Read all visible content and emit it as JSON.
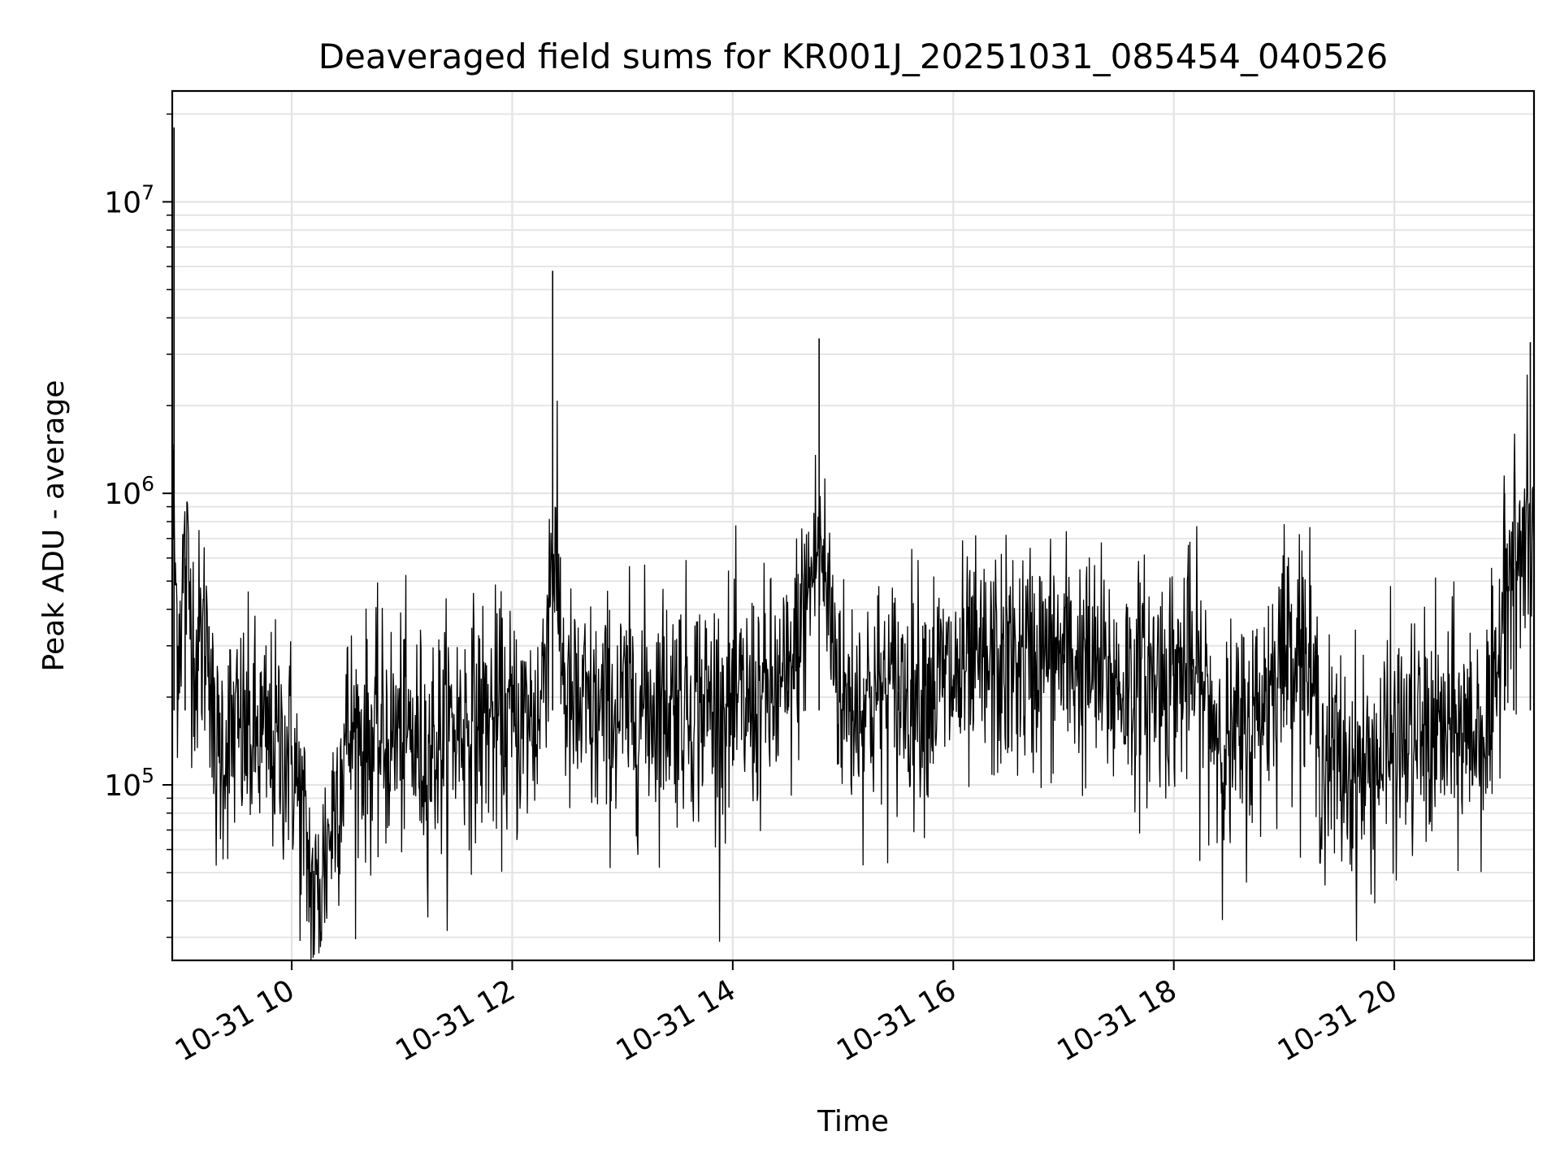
{
  "chart_data": {
    "type": "line",
    "title": "Deaveraged field sums for KR001J_20251031_085454_040526",
    "xlabel": "Time",
    "ylabel": "Peak ADU - average",
    "x_range": [
      "2025-10-31T08:55:00",
      "2025-10-31T21:16:00"
    ],
    "y_scale": "log",
    "ylim": [
      25000,
      24000000
    ],
    "grid": true,
    "line_color": "#000000",
    "x_ticks": [
      {
        "value": "2025-10-31T10:00:00",
        "label": "10-31 10"
      },
      {
        "value": "2025-10-31T12:00:00",
        "label": "10-31 12"
      },
      {
        "value": "2025-10-31T14:00:00",
        "label": "10-31 14"
      },
      {
        "value": "2025-10-31T16:00:00",
        "label": "10-31 16"
      },
      {
        "value": "2025-10-31T18:00:00",
        "label": "10-31 18"
      },
      {
        "value": "2025-10-31T20:00:00",
        "label": "10-31 20"
      }
    ],
    "y_ticks": [
      {
        "value": 100000,
        "base": "10",
        "exp": "5"
      },
      {
        "value": 1000000,
        "base": "10",
        "exp": "6"
      },
      {
        "value": 10000000,
        "base": "10",
        "exp": "7"
      }
    ],
    "series": [
      {
        "x": [
          "2025-10-31T08:56:00",
          "2025-10-31T08:58:00",
          "2025-10-31T09:02:00",
          "2025-10-31T09:08:00",
          "2025-10-31T09:15:00",
          "2025-10-31T09:18:00",
          "2025-10-31T09:22:00",
          "2025-10-31T09:30:00",
          "2025-10-31T09:45:00",
          "2025-10-31T10:00:00",
          "2025-10-31T10:13:00",
          "2025-10-31T10:30:00",
          "2025-10-31T10:45:00",
          "2025-10-31T11:00:00",
          "2025-10-31T11:12:00",
          "2025-10-31T11:30:00",
          "2025-10-31T11:45:00",
          "2025-10-31T12:00:00",
          "2025-10-31T12:15:00",
          "2025-10-31T12:22:00",
          "2025-10-31T12:30:00",
          "2025-10-31T12:45:00",
          "2025-10-31T13:00:00",
          "2025-10-31T13:30:00",
          "2025-10-31T14:00:00",
          "2025-10-31T14:30:00",
          "2025-10-31T14:47:00",
          "2025-10-31T15:00:00",
          "2025-10-31T15:30:00",
          "2025-10-31T16:00:00",
          "2025-10-31T16:30:00",
          "2025-10-31T17:00:00",
          "2025-10-31T17:30:00",
          "2025-10-31T18:00:00",
          "2025-10-31T18:10:00",
          "2025-10-31T18:30:00",
          "2025-10-31T18:45:00",
          "2025-10-31T19:00:00",
          "2025-10-31T19:10:00",
          "2025-10-31T19:22:00",
          "2025-10-31T19:45:00",
          "2025-10-31T20:00:00",
          "2025-10-31T20:30:00",
          "2025-10-31T20:55:00",
          "2025-10-31T21:00:00",
          "2025-10-31T21:05:00",
          "2025-10-31T21:14:00"
        ],
        "y": [
          18000000,
          300000,
          600000,
          280000,
          350000,
          110000,
          140000,
          150000,
          140000,
          130000,
          37000,
          150000,
          140000,
          150000,
          130000,
          160000,
          170000,
          160000,
          170000,
          5800000,
          180000,
          170000,
          180000,
          200000,
          180000,
          210000,
          3400000,
          190000,
          210000,
          230000,
          260000,
          280000,
          220000,
          240000,
          250000,
          130000,
          170000,
          300000,
          320000,
          120000,
          110000,
          140000,
          150000,
          160000,
          1000000,
          550000,
          3300000
        ]
      }
    ]
  }
}
